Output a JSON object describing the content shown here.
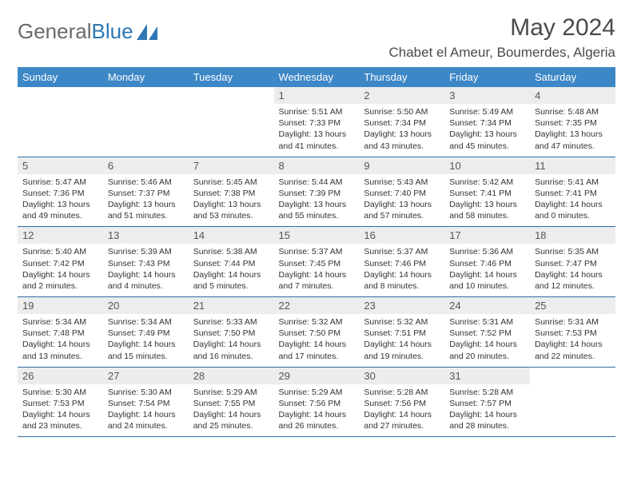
{
  "brand": {
    "part1": "General",
    "part2": "Blue"
  },
  "title": "May 2024",
  "location": "Chabet el Ameur, Boumerdes, Algeria",
  "colors": {
    "header_bg": "#3d87c7",
    "header_text": "#ffffff",
    "daynum_bg": "#ededed",
    "border": "#2d6da8",
    "brand_gray": "#6a6a6a",
    "brand_blue": "#2d77b5"
  },
  "weekdays": [
    "Sunday",
    "Monday",
    "Tuesday",
    "Wednesday",
    "Thursday",
    "Friday",
    "Saturday"
  ],
  "weeks": [
    [
      {
        "n": "",
        "sr": "",
        "ss": "",
        "dh": "",
        "dm": ""
      },
      {
        "n": "",
        "sr": "",
        "ss": "",
        "dh": "",
        "dm": ""
      },
      {
        "n": "",
        "sr": "",
        "ss": "",
        "dh": "",
        "dm": ""
      },
      {
        "n": "1",
        "sr": "5:51 AM",
        "ss": "7:33 PM",
        "dh": "13",
        "dm": "41"
      },
      {
        "n": "2",
        "sr": "5:50 AM",
        "ss": "7:34 PM",
        "dh": "13",
        "dm": "43"
      },
      {
        "n": "3",
        "sr": "5:49 AM",
        "ss": "7:34 PM",
        "dh": "13",
        "dm": "45"
      },
      {
        "n": "4",
        "sr": "5:48 AM",
        "ss": "7:35 PM",
        "dh": "13",
        "dm": "47"
      }
    ],
    [
      {
        "n": "5",
        "sr": "5:47 AM",
        "ss": "7:36 PM",
        "dh": "13",
        "dm": "49"
      },
      {
        "n": "6",
        "sr": "5:46 AM",
        "ss": "7:37 PM",
        "dh": "13",
        "dm": "51"
      },
      {
        "n": "7",
        "sr": "5:45 AM",
        "ss": "7:38 PM",
        "dh": "13",
        "dm": "53"
      },
      {
        "n": "8",
        "sr": "5:44 AM",
        "ss": "7:39 PM",
        "dh": "13",
        "dm": "55"
      },
      {
        "n": "9",
        "sr": "5:43 AM",
        "ss": "7:40 PM",
        "dh": "13",
        "dm": "57"
      },
      {
        "n": "10",
        "sr": "5:42 AM",
        "ss": "7:41 PM",
        "dh": "13",
        "dm": "58"
      },
      {
        "n": "11",
        "sr": "5:41 AM",
        "ss": "7:41 PM",
        "dh": "14",
        "dm": "0"
      }
    ],
    [
      {
        "n": "12",
        "sr": "5:40 AM",
        "ss": "7:42 PM",
        "dh": "14",
        "dm": "2"
      },
      {
        "n": "13",
        "sr": "5:39 AM",
        "ss": "7:43 PM",
        "dh": "14",
        "dm": "4"
      },
      {
        "n": "14",
        "sr": "5:38 AM",
        "ss": "7:44 PM",
        "dh": "14",
        "dm": "5"
      },
      {
        "n": "15",
        "sr": "5:37 AM",
        "ss": "7:45 PM",
        "dh": "14",
        "dm": "7"
      },
      {
        "n": "16",
        "sr": "5:37 AM",
        "ss": "7:46 PM",
        "dh": "14",
        "dm": "8"
      },
      {
        "n": "17",
        "sr": "5:36 AM",
        "ss": "7:46 PM",
        "dh": "14",
        "dm": "10"
      },
      {
        "n": "18",
        "sr": "5:35 AM",
        "ss": "7:47 PM",
        "dh": "14",
        "dm": "12"
      }
    ],
    [
      {
        "n": "19",
        "sr": "5:34 AM",
        "ss": "7:48 PM",
        "dh": "14",
        "dm": "13"
      },
      {
        "n": "20",
        "sr": "5:34 AM",
        "ss": "7:49 PM",
        "dh": "14",
        "dm": "15"
      },
      {
        "n": "21",
        "sr": "5:33 AM",
        "ss": "7:50 PM",
        "dh": "14",
        "dm": "16"
      },
      {
        "n": "22",
        "sr": "5:32 AM",
        "ss": "7:50 PM",
        "dh": "14",
        "dm": "17"
      },
      {
        "n": "23",
        "sr": "5:32 AM",
        "ss": "7:51 PM",
        "dh": "14",
        "dm": "19"
      },
      {
        "n": "24",
        "sr": "5:31 AM",
        "ss": "7:52 PM",
        "dh": "14",
        "dm": "20"
      },
      {
        "n": "25",
        "sr": "5:31 AM",
        "ss": "7:53 PM",
        "dh": "14",
        "dm": "22"
      }
    ],
    [
      {
        "n": "26",
        "sr": "5:30 AM",
        "ss": "7:53 PM",
        "dh": "14",
        "dm": "23"
      },
      {
        "n": "27",
        "sr": "5:30 AM",
        "ss": "7:54 PM",
        "dh": "14",
        "dm": "24"
      },
      {
        "n": "28",
        "sr": "5:29 AM",
        "ss": "7:55 PM",
        "dh": "14",
        "dm": "25"
      },
      {
        "n": "29",
        "sr": "5:29 AM",
        "ss": "7:56 PM",
        "dh": "14",
        "dm": "26"
      },
      {
        "n": "30",
        "sr": "5:28 AM",
        "ss": "7:56 PM",
        "dh": "14",
        "dm": "27"
      },
      {
        "n": "31",
        "sr": "5:28 AM",
        "ss": "7:57 PM",
        "dh": "14",
        "dm": "28"
      },
      {
        "n": "",
        "sr": "",
        "ss": "",
        "dh": "",
        "dm": ""
      }
    ]
  ],
  "labels": {
    "sunrise": "Sunrise: ",
    "sunset": "Sunset: ",
    "daylight_pre": "Daylight: ",
    "hours_mid": " hours and ",
    "minutes_post": " minutes."
  }
}
